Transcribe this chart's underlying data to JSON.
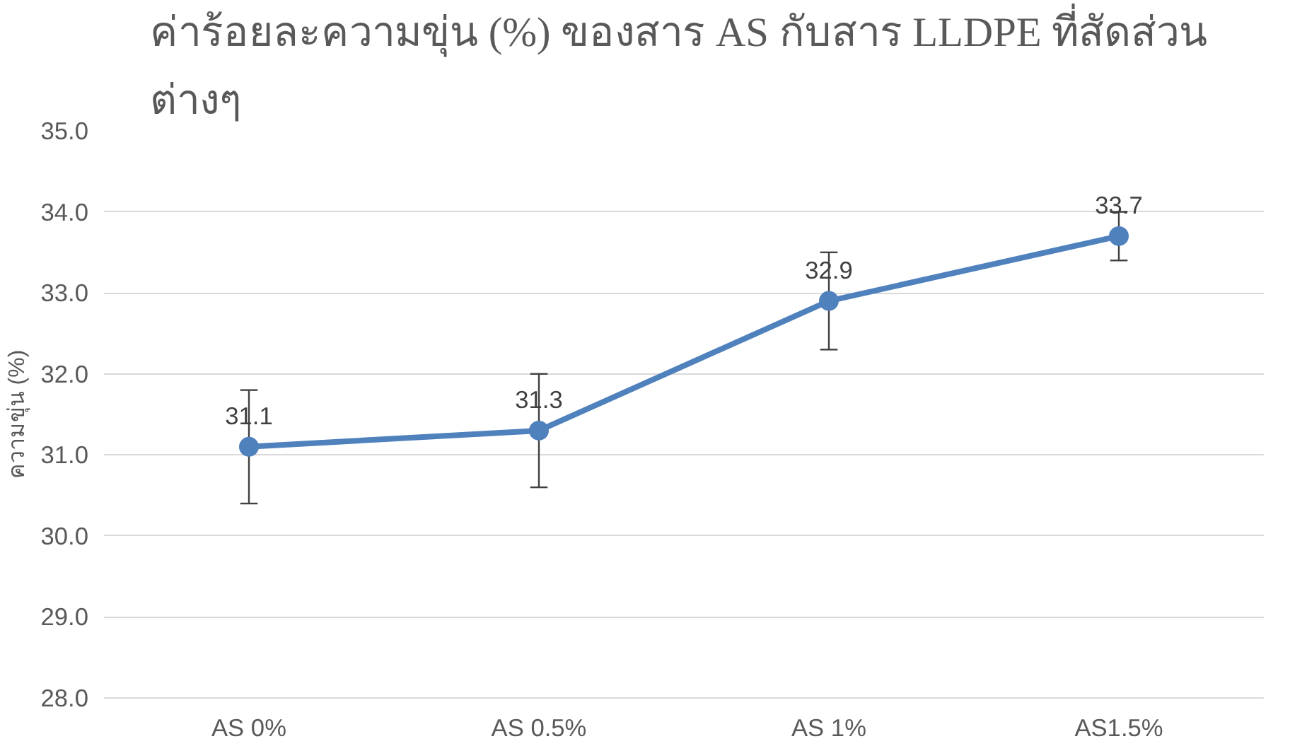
{
  "chart_data": {
    "type": "line",
    "title": "ค่าร้อยละความขุ่น (%) ของสาร AS  กับสาร LLDPE ที่สัดส่วน\nต่างๆ",
    "ylabel": "ความขุ่น (%)",
    "categories": [
      "AS 0%",
      "AS 0.5%",
      "AS 1%",
      "AS1.5%"
    ],
    "series": [
      {
        "color": "#4f81bd",
        "values": [
          31.1,
          31.3,
          32.9,
          33.7
        ],
        "errors": [
          0.7,
          0.7,
          0.6,
          0.3
        ]
      }
    ],
    "data_labels": true,
    "ylim": [
      28,
      35
    ],
    "yticks": [
      {
        "value": 28,
        "label": "28.0"
      },
      {
        "value": 29,
        "label": "29.0"
      },
      {
        "value": 30,
        "label": "30.0"
      },
      {
        "value": 31,
        "label": "31.0"
      },
      {
        "value": 32,
        "label": "32.0"
      },
      {
        "value": 33,
        "label": "33.0"
      },
      {
        "value": 34,
        "label": "34.0"
      },
      {
        "value": 35,
        "label": "35.0"
      }
    ],
    "grid": "y",
    "marker": "circle",
    "line_style": "solid"
  }
}
